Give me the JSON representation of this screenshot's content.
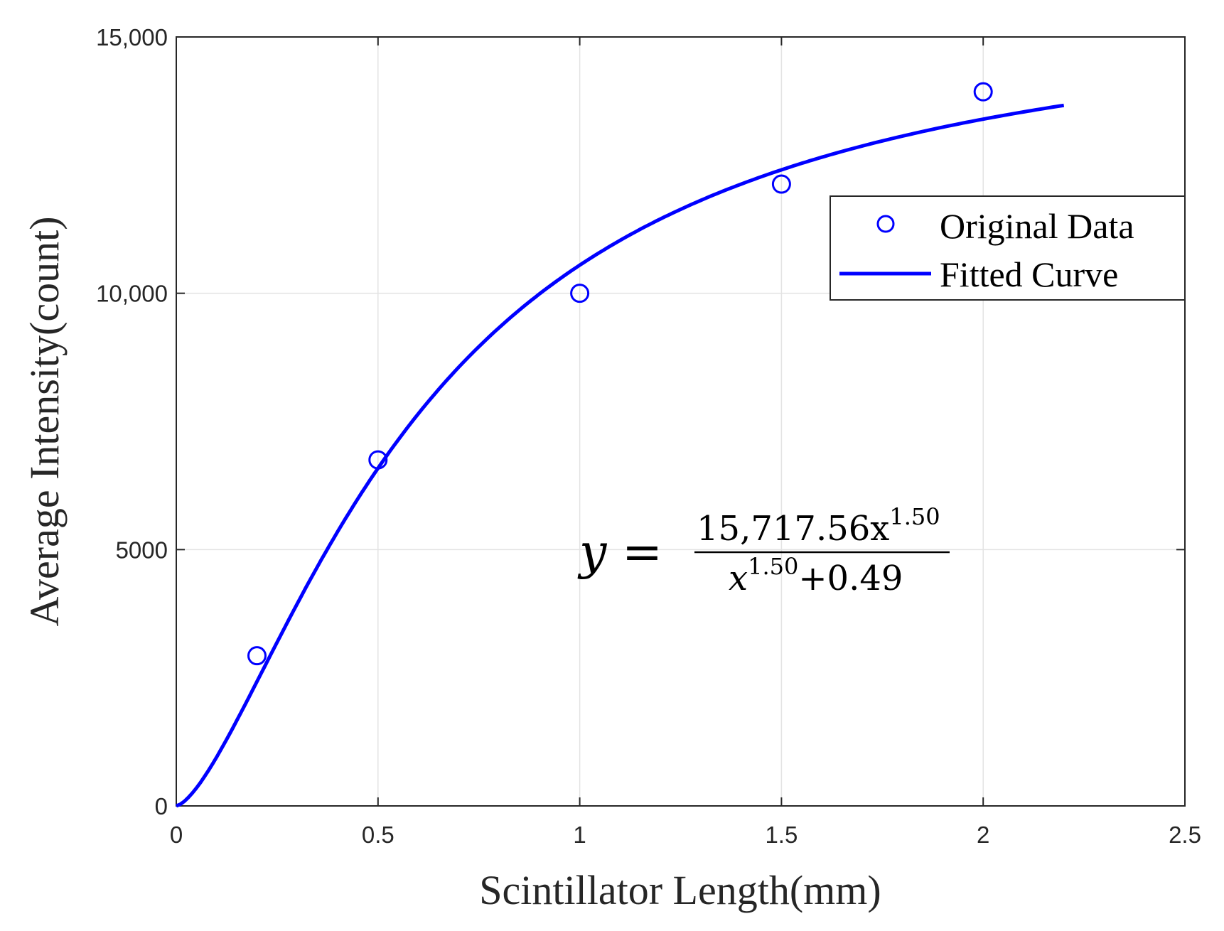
{
  "chart_data": {
    "type": "scatter",
    "xlabel": "Scintillator Length(mm)",
    "ylabel": "Average Intensity(count)",
    "xlim": [
      0,
      2.5
    ],
    "ylim": [
      0,
      15000
    ],
    "xticks": [
      0,
      0.5,
      1,
      1.5,
      2,
      2.5
    ],
    "xtick_labels": [
      "0",
      "0.5",
      "1",
      "1.5",
      "2",
      "2.5"
    ],
    "yticks": [
      0,
      5000,
      10000,
      15000
    ],
    "ytick_labels": [
      "0",
      "5000",
      "10,000",
      "15,000"
    ],
    "grid": true,
    "legend_position": "upper-right",
    "series": [
      {
        "name": "Original Data",
        "kind": "markers",
        "marker": "circle",
        "color": "#0000ff",
        "x": [
          0.2,
          0.5,
          1.0,
          1.5,
          2.0
        ],
        "y": [
          2930,
          6750,
          10000,
          12130,
          13930
        ]
      },
      {
        "name": "Fitted Curve",
        "kind": "line",
        "color": "#0000ff",
        "formula": {
          "a": 15717.56,
          "n": 1.5,
          "b": 0.49
        },
        "x_range": [
          0,
          2.2
        ]
      }
    ],
    "annotation": {
      "lhs": "y =",
      "numerator": "15,717.56x",
      "numerator_exp": "1.50",
      "denominator_base": "x",
      "denominator_exp": "1.50",
      "denominator_tail": "+0.49"
    }
  }
}
